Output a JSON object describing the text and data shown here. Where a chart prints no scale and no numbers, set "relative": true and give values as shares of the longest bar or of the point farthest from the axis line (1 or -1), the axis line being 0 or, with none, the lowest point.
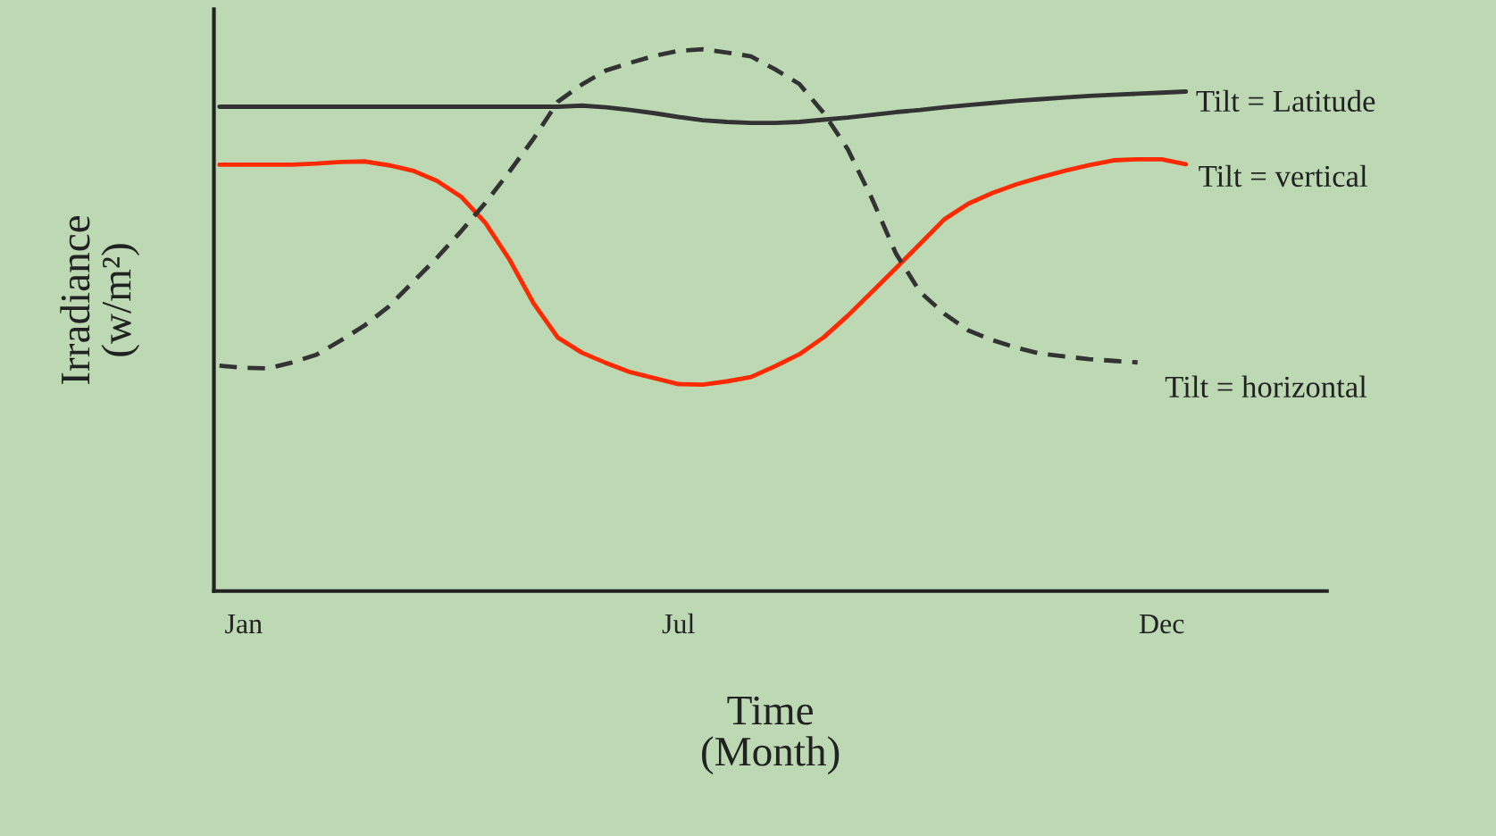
{
  "chart_data": {
    "type": "line",
    "relative": true,
    "xlabel": "Time\n(Month)",
    "ylabel": "Irradiance\n(w/m²)",
    "categories": [
      null,
      "Jan",
      null,
      null,
      null,
      null,
      null,
      null,
      null,
      null,
      null,
      null,
      null,
      null,
      null,
      null,
      null,
      null,
      null,
      "Jul",
      null,
      null,
      null,
      null,
      null,
      null,
      null,
      null,
      null,
      null,
      null,
      null,
      null,
      null,
      null,
      null,
      null,
      null,
      null,
      "Dec",
      null
    ],
    "grid": false,
    "legend": false,
    "series": [
      {
        "name": "Tilt = Latitude",
        "color": "#333333",
        "line_style": "solid",
        "values": [
          0.894,
          0.894,
          0.894,
          0.894,
          0.894,
          0.894,
          0.894,
          0.894,
          0.894,
          0.894,
          0.894,
          0.894,
          0.894,
          0.894,
          0.894,
          0.896,
          0.893,
          0.888,
          0.882,
          0.875,
          0.869,
          0.866,
          0.864,
          0.864,
          0.866,
          0.87,
          0.874,
          0.879,
          0.884,
          0.888,
          0.893,
          0.897,
          0.901,
          0.905,
          0.908,
          0.911,
          0.914,
          0.916,
          0.918,
          0.92,
          0.922
        ]
      },
      {
        "name": "Tilt = vertical",
        "color": "#ff2a00",
        "line_style": "solid",
        "values": [
          0.787,
          0.787,
          0.787,
          0.787,
          0.789,
          0.792,
          0.793,
          0.786,
          0.776,
          0.757,
          0.728,
          0.68,
          0.612,
          0.531,
          0.468,
          0.44,
          0.421,
          0.404,
          0.393,
          0.382,
          0.381,
          0.387,
          0.395,
          0.415,
          0.437,
          0.468,
          0.508,
          0.552,
          0.596,
          0.641,
          0.686,
          0.715,
          0.735,
          0.751,
          0.764,
          0.776,
          0.786,
          0.795,
          0.797,
          0.797,
          0.788
        ]
      },
      {
        "name": "Tilt = horizontal",
        "color": "#333333",
        "line_style": "dashed",
        "values": [
          0.416,
          0.412,
          0.411,
          0.422,
          0.436,
          0.462,
          0.49,
          0.525,
          0.57,
          0.615,
          0.664,
          0.716,
          0.774,
          0.835,
          0.903,
          0.935,
          0.961,
          0.975,
          0.988,
          0.997,
          1.0,
          0.994,
          0.987,
          0.963,
          0.936,
          0.883,
          0.816,
          0.725,
          0.623,
          0.552,
          0.512,
          0.481,
          0.463,
          0.449,
          0.438,
          0.433,
          0.428,
          0.425,
          0.422,
          null,
          null
        ]
      }
    ]
  }
}
